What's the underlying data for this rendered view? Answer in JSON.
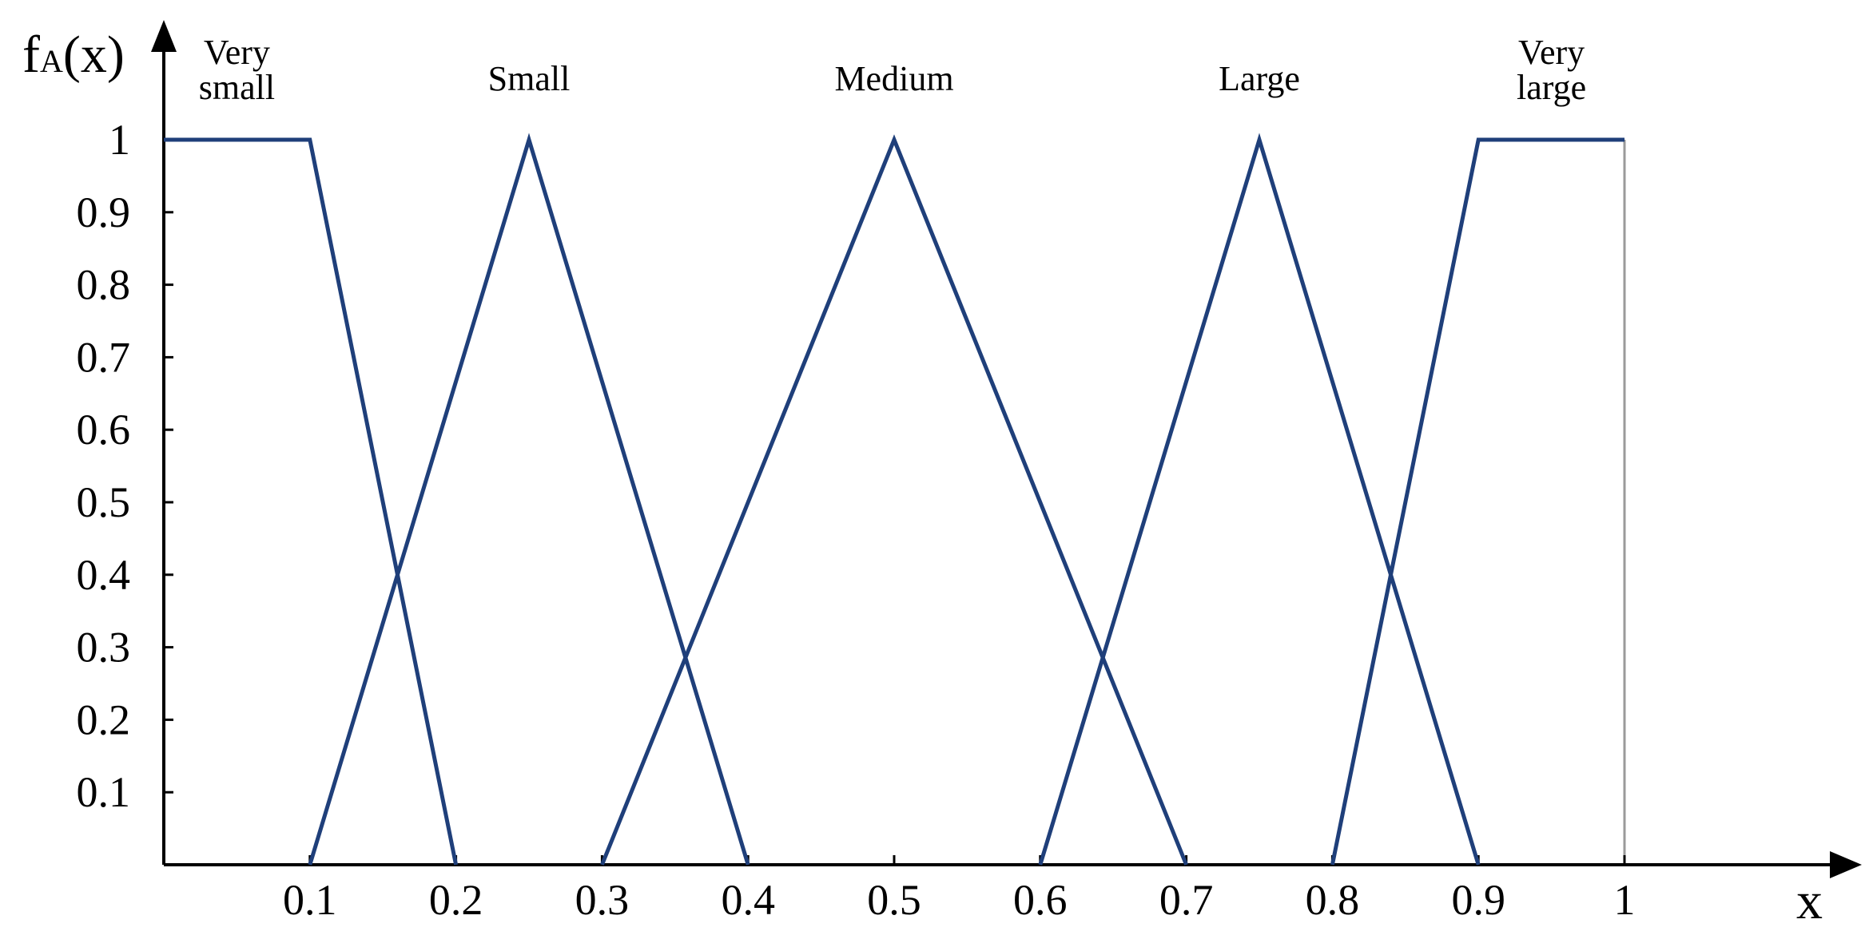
{
  "chart_data": {
    "type": "line",
    "ylabel_main": "f",
    "ylabel_sub": "A",
    "ylabel_rest": "(x)",
    "xlabel": "x",
    "xlim": [
      0,
      1
    ],
    "ylim": [
      0,
      1
    ],
    "x_ticks": [
      "0.1",
      "0.2",
      "0.3",
      "0.4",
      "0.5",
      "0.6",
      "0.7",
      "0.8",
      "0.9",
      "1"
    ],
    "x_tick_values": [
      0.1,
      0.2,
      0.3,
      0.4,
      0.5,
      0.6,
      0.7,
      0.8,
      0.9,
      1.0
    ],
    "y_ticks": [
      "0.1",
      "0.2",
      "0.3",
      "0.4",
      "0.5",
      "0.6",
      "0.7",
      "0.8",
      "0.9",
      "1"
    ],
    "y_tick_values": [
      0.1,
      0.2,
      0.3,
      0.4,
      0.5,
      0.6,
      0.7,
      0.8,
      0.9,
      1.0
    ],
    "grid": false,
    "line_color": "#1f3f7a",
    "series": [
      {
        "name": [
          "Very",
          "small"
        ],
        "x": [
          0,
          0.1,
          0.2
        ],
        "y": [
          1,
          1,
          0
        ]
      },
      {
        "name": [
          "Small"
        ],
        "x": [
          0.1,
          0.25,
          0.4
        ],
        "y": [
          0,
          1,
          0
        ]
      },
      {
        "name": [
          "Medium"
        ],
        "x": [
          0.3,
          0.5,
          0.7
        ],
        "y": [
          0,
          1,
          0
        ]
      },
      {
        "name": [
          "Large"
        ],
        "x": [
          0.6,
          0.75,
          0.9
        ],
        "y": [
          0,
          1,
          0
        ]
      },
      {
        "name": [
          "Very",
          "large"
        ],
        "x": [
          0.8,
          0.9,
          1.0
        ],
        "y": [
          0,
          1,
          1
        ]
      }
    ]
  }
}
